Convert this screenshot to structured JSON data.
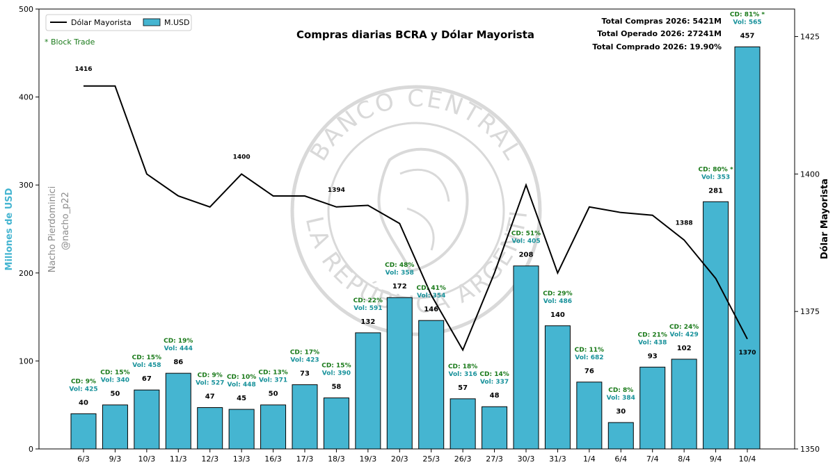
{
  "chart_data": {
    "type": "bar",
    "title": "Compras diarias BCRA y Dólar Mayorista",
    "ylabel": "Millones de USD",
    "ylabel_right": "Dólar Mayorista",
    "ylim": [
      0,
      500
    ],
    "ylim_right": [
      1350,
      1430
    ],
    "yticks": [
      0,
      100,
      200,
      300,
      400,
      500
    ],
    "yticks_right": [
      1350,
      1375,
      1400,
      1425
    ],
    "categories": [
      "6/3",
      "9/3",
      "10/3",
      "11/3",
      "12/3",
      "13/3",
      "16/3",
      "17/3",
      "18/3",
      "19/3",
      "20/3",
      "25/3",
      "26/3",
      "27/3",
      "30/3",
      "31/3",
      "1/4",
      "6/4",
      "7/4",
      "8/4",
      "9/4",
      "10/4"
    ],
    "series": [
      {
        "name": "M.USD",
        "type": "bar",
        "values": [
          40,
          50,
          67,
          86,
          47,
          45,
          50,
          73,
          58,
          132,
          172,
          146,
          57,
          48,
          208,
          140,
          76,
          30,
          93,
          102,
          281,
          457
        ]
      },
      {
        "name": "Dólar Mayorista",
        "type": "line",
        "axis": "right",
        "values": [
          1416,
          1416,
          1400,
          1396,
          1394,
          1400,
          1396,
          1396,
          1394,
          1394.3,
          1391,
          1378,
          1368,
          1382,
          1398,
          1382,
          1394,
          1393,
          1392.5,
          1388,
          1381,
          1370
        ]
      }
    ],
    "cd_percent": [
      "CD: 9%",
      "CD: 15%",
      "CD: 15%",
      "CD: 19%",
      "CD: 9%",
      "CD: 10%",
      "CD: 13%",
      "CD: 17%",
      "CD: 15%",
      "CD: 22%",
      "CD: 48%",
      "CD: 41%",
      "CD: 18%",
      "CD: 14%",
      "CD: 51%",
      "CD: 29%",
      "CD: 11%",
      "CD: 8%",
      "CD: 21%",
      "CD: 24%",
      "CD: 80% *",
      "CD: 81% *"
    ],
    "volume": [
      "Vol: 425",
      "Vol: 340",
      "Vol: 458",
      "Vol: 444",
      "Vol: 527",
      "Vol: 448",
      "Vol: 371",
      "Vol: 423",
      "Vol: 390",
      "Vol: 591",
      "Vol: 358",
      "Vol: 354",
      "Vol: 316",
      "Vol: 337",
      "Vol: 405",
      "Vol: 486",
      "Vol: 682",
      "Vol: 384",
      "Vol: 438",
      "Vol: 429",
      "Vol: 353",
      "Vol: 565"
    ],
    "line_annotations": [
      {
        "index": 0,
        "text": "1416"
      },
      {
        "index": 5,
        "text": "1400"
      },
      {
        "index": 8,
        "text": "1394"
      },
      {
        "index": 19,
        "text": "1388"
      },
      {
        "index": 21,
        "text": "1370"
      }
    ],
    "legend": {
      "position": "top-left",
      "entries": [
        "Dólar Mayorista",
        "M.USD"
      ]
    },
    "block_trade_note": "* Block Trade",
    "totals": [
      "Total Compras 2026: 5421M",
      "Total Operado 2026: 27241M",
      "Total Comprado 2026: 19.90%"
    ],
    "author": "Nacho Pierdominici",
    "handle": "@nacho_p22",
    "watermark": "BANCO CENTRAL DE LA REPÚBLICA ARGENTINA",
    "colors": {
      "bar": "#45b5d1",
      "line": "#000000",
      "cd_text": "#1a7a1a",
      "vol_text": "#17919a",
      "ylabel": "#45b5d1",
      "author": "#8c8c8c",
      "watermark": "#d9d9d9"
    }
  }
}
